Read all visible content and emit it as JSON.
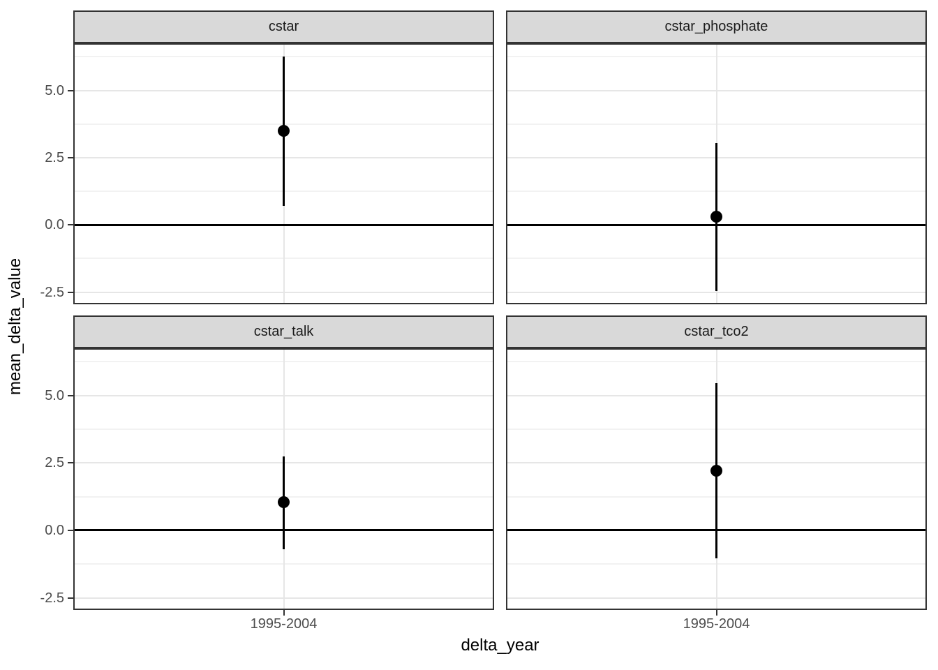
{
  "chart_data": {
    "type": "scatter",
    "subtype": "faceted-pointrange",
    "title": "",
    "xlabel": "delta_year",
    "ylabel": "mean_delta_value",
    "x_categories": [
      "1995-2004"
    ],
    "ylim": [
      -2.9,
      6.7
    ],
    "yticks": [
      {
        "value": 5.0,
        "label": "5.0"
      },
      {
        "value": 2.5,
        "label": "2.5"
      },
      {
        "value": 0.0,
        "label": "0.0"
      },
      {
        "value": -2.5,
        "label": "-2.5"
      }
    ],
    "yticks_minor": [
      6.25,
      3.75,
      1.25,
      -1.25
    ],
    "hline_y": 0,
    "grid": "horizontal major+minor and vertical major, light gray on white",
    "legend": "none",
    "facets": [
      {
        "label": "cstar",
        "x": "1995-2004",
        "mean": 3.5,
        "lower": 0.7,
        "upper": 6.25
      },
      {
        "label": "cstar_phosphate",
        "x": "1995-2004",
        "mean": 0.3,
        "lower": -2.45,
        "upper": 3.05
      },
      {
        "label": "cstar_talk",
        "x": "1995-2004",
        "mean": 1.05,
        "lower": -0.7,
        "upper": 2.75
      },
      {
        "label": "cstar_tco2",
        "x": "1995-2004",
        "mean": 2.2,
        "lower": -1.05,
        "upper": 5.45
      }
    ],
    "colors": {
      "point": "#000000",
      "hline": "#000000",
      "strip_fill": "#d9d9d9",
      "strip_text": "#1a1a1a",
      "panel_border": "#333333",
      "grid_major": "#e6e6e6",
      "grid_minor": "#f2f2f2",
      "tick_label": "#4d4d4d",
      "axis_title": "#000000"
    }
  }
}
